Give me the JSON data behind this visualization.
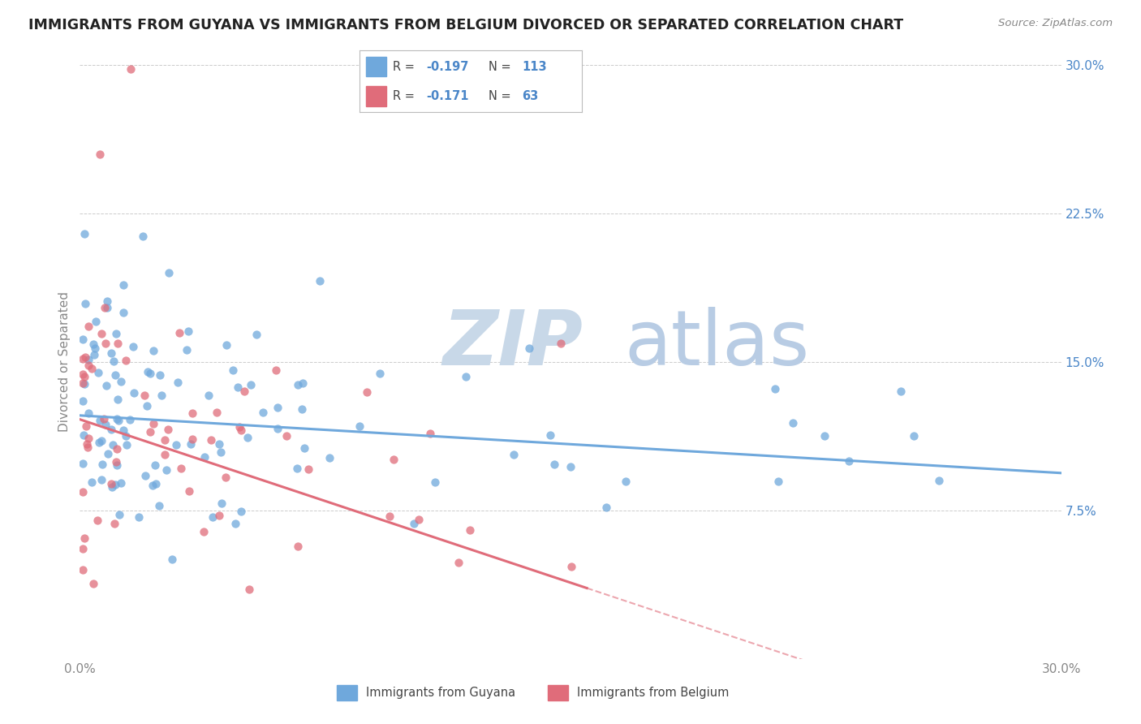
{
  "title": "IMMIGRANTS FROM GUYANA VS IMMIGRANTS FROM BELGIUM DIVORCED OR SEPARATED CORRELATION CHART",
  "source": "Source: ZipAtlas.com",
  "ylabel": "Divorced or Separated",
  "xlim": [
    0.0,
    0.3
  ],
  "ylim": [
    0.0,
    0.3
  ],
  "x_ticks": [
    0.0,
    0.05,
    0.1,
    0.15,
    0.2,
    0.25,
    0.3
  ],
  "x_tick_labels": [
    "0.0%",
    "",
    "",
    "",
    "",
    "",
    "30.0%"
  ],
  "y_ticks_right": [
    0.075,
    0.15,
    0.225,
    0.3
  ],
  "y_tick_labels_right": [
    "7.5%",
    "15.0%",
    "22.5%",
    "30.0%"
  ],
  "guyana_color": "#6fa8dc",
  "belgium_color": "#e06c7a",
  "guyana_R": -0.197,
  "guyana_N": 113,
  "belgium_R": -0.171,
  "belgium_N": 63,
  "watermark_zip": "ZIP",
  "watermark_atlas": "atlas",
  "watermark_color_zip": "#c8d8e8",
  "watermark_color_atlas": "#b8cce4",
  "legend_label_guyana": "Immigrants from Guyana",
  "legend_label_belgium": "Immigrants from Belgium",
  "background_color": "#ffffff",
  "grid_color": "#cccccc",
  "tick_color": "#888888",
  "right_axis_color": "#4a86c8"
}
